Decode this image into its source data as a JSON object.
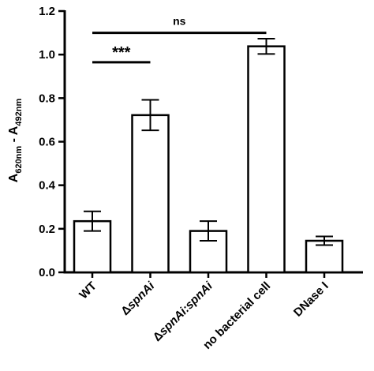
{
  "chart_data": {
    "type": "bar",
    "categories": [
      "WT",
      "ΔspnAi",
      "ΔspnAi:spnAi",
      "no bacterial cell",
      "DNase I"
    ],
    "values": [
      0.235,
      0.722,
      0.19,
      1.038,
      0.145
    ],
    "errors": [
      0.045,
      0.07,
      0.045,
      0.035,
      0.02
    ],
    "ylabel": {
      "main": "A",
      "sub1": "620nm",
      "mid": " - A",
      "sub2": "492nm"
    },
    "ylim": [
      0,
      1.2
    ],
    "yticks": [
      "0.0",
      "0.2",
      "0.4",
      "0.6",
      "0.8",
      "1.0",
      "1.2"
    ],
    "grid": false,
    "significance": [
      {
        "from": 0,
        "to": 3,
        "label": "ns",
        "y": 1.1
      },
      {
        "from": 0,
        "to": 1,
        "label": "***",
        "y": 0.965
      }
    ]
  }
}
